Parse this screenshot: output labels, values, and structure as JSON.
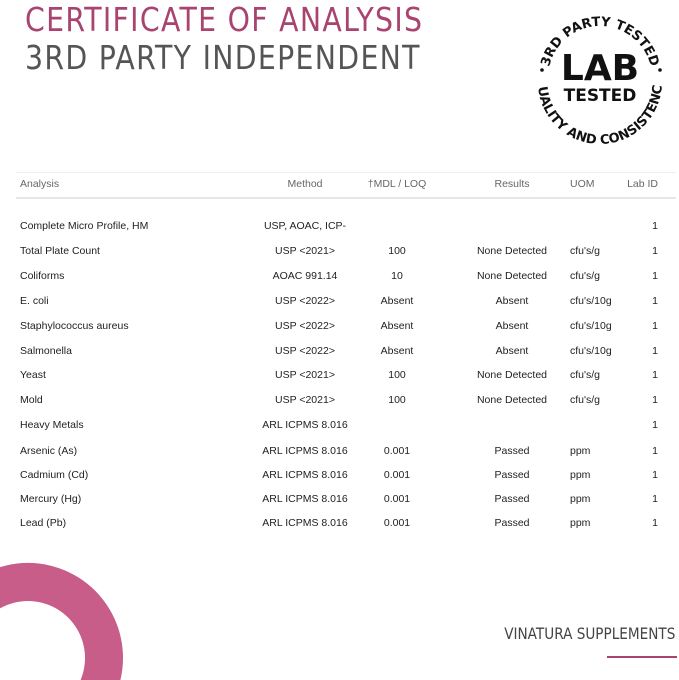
{
  "header": {
    "title": "CERTIFICATE OF ANALYSIS",
    "subtitle": "3RD PARTY INDEPENDENT"
  },
  "badge": {
    "top_text": "3RD PARTY TESTED",
    "main": "LAB",
    "sub": "TESTED",
    "bottom_text": "QUALITY AND CONSISTENCY"
  },
  "table": {
    "columns": [
      "Analysis",
      "Method",
      "†MDL / LOQ",
      "Results",
      "UOM",
      "Lab ID"
    ],
    "rows": [
      [
        "Complete Micro Profile, HM",
        "USP, AOAC, ICP-",
        "",
        "",
        "",
        "1"
      ],
      [
        "Total Plate Count",
        "USP <2021>",
        "100",
        "None Detected",
        "cfu's/g",
        "1"
      ],
      [
        "Coliforms",
        "AOAC 991.14",
        "10",
        "None Detected",
        "cfu's/g",
        "1"
      ],
      [
        "E. coli",
        "USP <2022>",
        "Absent",
        "Absent",
        "cfu's/10g",
        "1"
      ],
      [
        "Staphylococcus aureus",
        "USP <2022>",
        "Absent",
        "Absent",
        "cfu's/10g",
        "1"
      ],
      [
        "Salmonella",
        "USP <2022>",
        "Absent",
        "Absent",
        "cfu's/10g",
        "1"
      ],
      [
        "Yeast",
        "USP <2021>",
        "100",
        "None Detected",
        "cfu's/g",
        "1"
      ],
      [
        "Mold",
        "USP <2021>",
        "100",
        "None Detected",
        "cfu's/g",
        "1"
      ],
      [
        "Heavy Metals",
        "ARL ICPMS 8.016",
        "",
        "",
        "",
        "1"
      ],
      [
        "Arsenic (As)",
        "ARL ICPMS 8.016",
        "0.001",
        "Passed",
        "ppm",
        "1"
      ],
      [
        "Cadmium (Cd)",
        "ARL ICPMS 8.016",
        "0.001",
        "Passed",
        "ppm",
        "1"
      ],
      [
        "Mercury (Hg)",
        "ARL ICPMS 8.016",
        "0.001",
        "Passed",
        "ppm",
        "1"
      ],
      [
        "Lead (Pb)",
        "ARL ICPMS 8.016",
        "0.001",
        "Passed",
        "ppm",
        "1"
      ]
    ]
  },
  "footer": {
    "brand": "VINATURA SUPPLEMENTS"
  },
  "colors": {
    "accent": "#a8446f",
    "ring": "#c24f7e"
  }
}
